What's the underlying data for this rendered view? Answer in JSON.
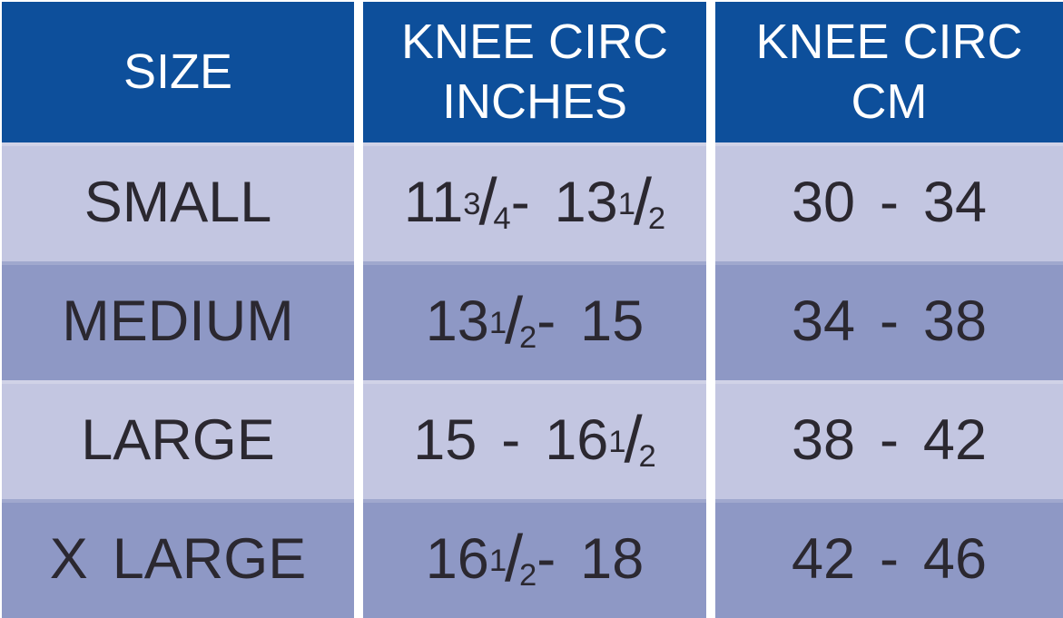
{
  "palette": {
    "header_bg": "#0D4F9B",
    "row_light": "#C3C6E1",
    "row_dark": "#8E98C5",
    "gap_white": "#FFFFFF",
    "text_dark": "#2B2830",
    "text_light": "#FFFFFF"
  },
  "table": {
    "columns": [
      {
        "label": "SIZE"
      },
      {
        "label": "KNEE CIRC\nINCHES"
      },
      {
        "label": "KNEE CIRC\nCM"
      }
    ],
    "rows": [
      {
        "size": "SMALL",
        "inches": "11[3/4] - 13[1/2]",
        "cm": "30 - 34"
      },
      {
        "size": "MEDIUM",
        "inches": "13[1/2] - 15",
        "cm": "34 - 38"
      },
      {
        "size": "LARGE",
        "inches": "15 - 16[1/2]",
        "cm": "38 - 42"
      },
      {
        "size": "X LARGE",
        "inches": "16[1/2] - 18",
        "cm": "42 - 46"
      }
    ]
  },
  "chart_data": {
    "type": "table",
    "columns": [
      "SIZE",
      "KNEE CIRC INCHES",
      "KNEE CIRC CM"
    ],
    "rows": [
      [
        "SMALL",
        "11 3/4 - 13 1/2",
        "30 - 34"
      ],
      [
        "MEDIUM",
        "13 1/2 - 15",
        "34 - 38"
      ],
      [
        "LARGE",
        "15 - 16 1/2",
        "38 - 42"
      ],
      [
        "X LARGE",
        "16 1/2 - 18",
        "42 - 46"
      ]
    ],
    "inches_ranges": [
      [
        11.75,
        13.5
      ],
      [
        13.5,
        15.0
      ],
      [
        15.0,
        16.5
      ],
      [
        16.5,
        18.0
      ]
    ],
    "cm_ranges": [
      [
        30,
        34
      ],
      [
        34,
        38
      ],
      [
        38,
        42
      ],
      [
        42,
        46
      ]
    ]
  }
}
